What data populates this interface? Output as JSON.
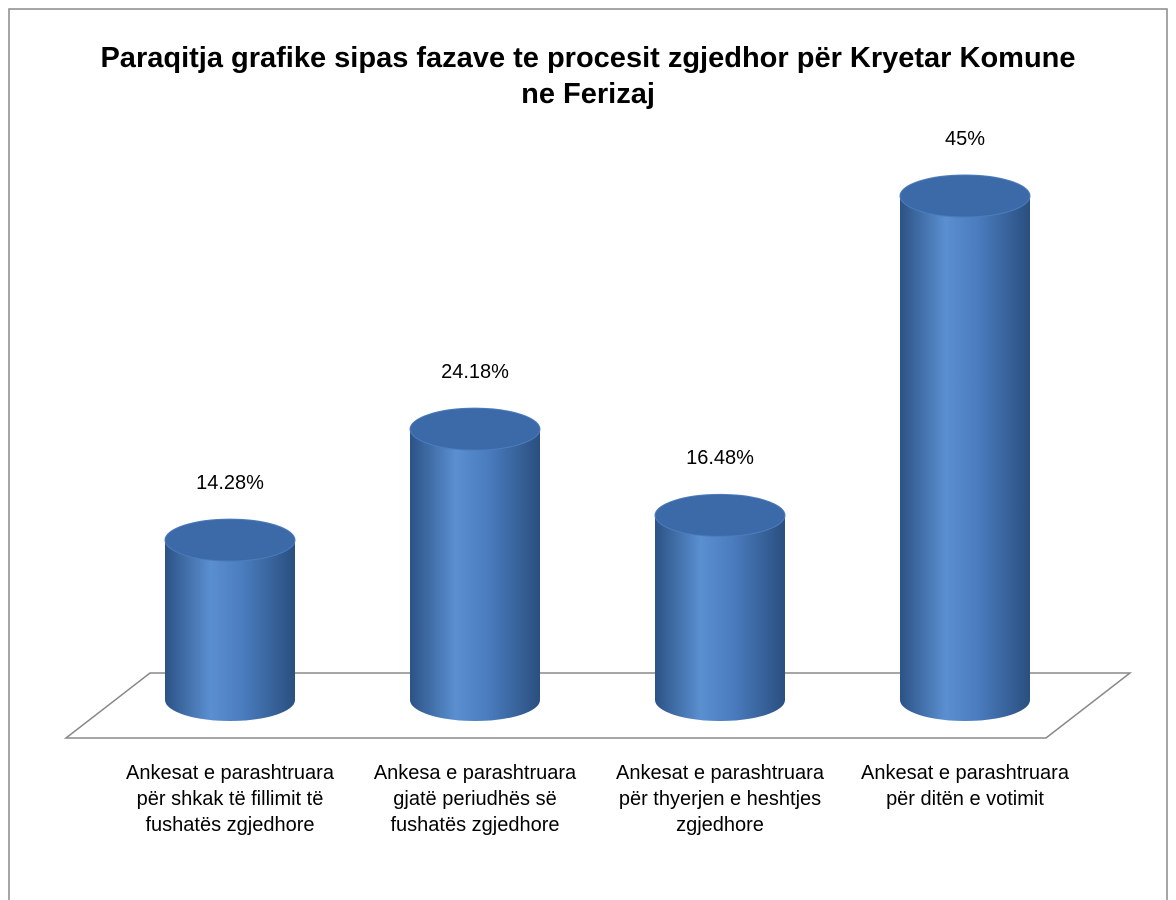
{
  "chart_data": {
    "type": "bar",
    "title": "Paraqitja grafike sipas fazave te procesit zgjedhor për Kryetar Komune ne Ferizaj",
    "categories": [
      "Ankesat e parashtruara për shkak të fillimit të fushatës zgjedhore",
      "Ankesa e parashtruara gjatë periudhës së fushatës zgjedhore",
      "Ankesat e parashtruara për thyerjen e heshtjes zgjedhore",
      "Ankesat e parashtruara për ditën e votimit"
    ],
    "values": [
      14.28,
      24.18,
      16.48,
      45
    ],
    "value_labels": [
      "14.28%",
      "24.18%",
      "16.48%",
      "45%"
    ],
    "color": "#4f81bd"
  }
}
